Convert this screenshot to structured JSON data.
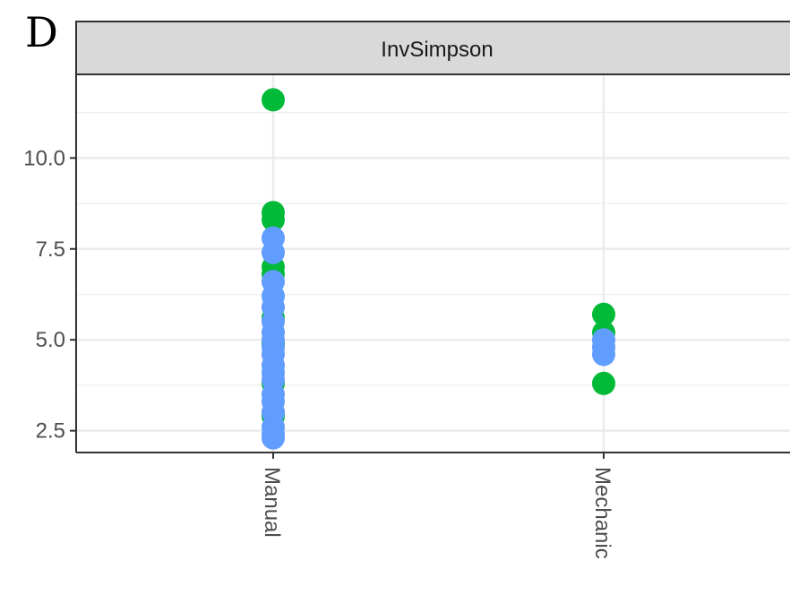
{
  "panel_label": "D",
  "chart_data": {
    "type": "scatter",
    "facet_title": "InvSimpson",
    "categories": [
      "Manual",
      "Mechanic"
    ],
    "y_ticks": [
      2.5,
      5.0,
      7.5,
      10.0
    ],
    "y_tick_labels": [
      "2.5",
      "5.0",
      "7.5",
      "10.0"
    ],
    "ylim": [
      1.9,
      12.3
    ],
    "grid": true,
    "series": [
      {
        "color": "#00BA38",
        "points": [
          {
            "x": "Manual",
            "y": 11.6
          },
          {
            "x": "Manual",
            "y": 8.5
          },
          {
            "x": "Manual",
            "y": 8.3
          },
          {
            "x": "Manual",
            "y": 7.0
          },
          {
            "x": "Manual",
            "y": 6.8
          },
          {
            "x": "Manual",
            "y": 5.6
          },
          {
            "x": "Manual",
            "y": 4.9
          },
          {
            "x": "Manual",
            "y": 3.8
          },
          {
            "x": "Manual",
            "y": 3.0
          },
          {
            "x": "Manual",
            "y": 2.9
          },
          {
            "x": "Mechanic",
            "y": 5.7
          },
          {
            "x": "Mechanic",
            "y": 5.2
          },
          {
            "x": "Mechanic",
            "y": 3.8
          }
        ]
      },
      {
        "color": "#619CFF",
        "points": [
          {
            "x": "Manual",
            "y": 7.8
          },
          {
            "x": "Manual",
            "y": 7.4
          },
          {
            "x": "Manual",
            "y": 6.6
          },
          {
            "x": "Manual",
            "y": 6.2
          },
          {
            "x": "Manual",
            "y": 5.9
          },
          {
            "x": "Manual",
            "y": 5.5
          },
          {
            "x": "Manual",
            "y": 5.2
          },
          {
            "x": "Manual",
            "y": 5.0
          },
          {
            "x": "Manual",
            "y": 4.8
          },
          {
            "x": "Manual",
            "y": 4.6
          },
          {
            "x": "Manual",
            "y": 4.3
          },
          {
            "x": "Manual",
            "y": 4.1
          },
          {
            "x": "Manual",
            "y": 3.9
          },
          {
            "x": "Manual",
            "y": 3.5
          },
          {
            "x": "Manual",
            "y": 3.3
          },
          {
            "x": "Manual",
            "y": 3.0
          },
          {
            "x": "Manual",
            "y": 2.6
          },
          {
            "x": "Manual",
            "y": 2.4
          },
          {
            "x": "Manual",
            "y": 2.3
          },
          {
            "x": "Mechanic",
            "y": 5.0
          },
          {
            "x": "Mechanic",
            "y": 4.8
          },
          {
            "x": "Mechanic",
            "y": 4.6
          }
        ]
      }
    ]
  }
}
